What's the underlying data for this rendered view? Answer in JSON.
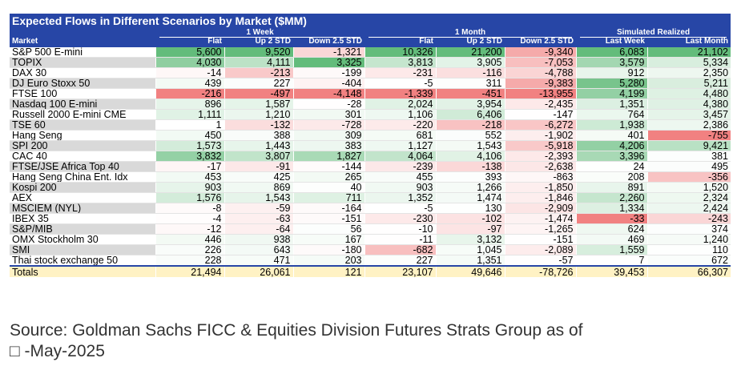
{
  "title": "Expected Flows in Different Scenarios by Market ($MM)",
  "groups": [
    "1 Week",
    "1 Month",
    "Simulated Realized"
  ],
  "market_label": "Market",
  "columns": [
    "Flat",
    "Up 2 STD",
    "Down 2.5 STD",
    "Flat",
    "Up 2 STD",
    "Down 2.5 STD",
    "Last Week",
    "Last Month"
  ],
  "rows": [
    {
      "market": "S&P 500 E-mini",
      "values": [
        "5,600",
        "9,520",
        "-1,321",
        "10,326",
        "21,200",
        "-9,340",
        "6,083",
        "21,102"
      ]
    },
    {
      "market": "TOPIX",
      "values": [
        "4,030",
        "4,111",
        "3,325",
        "3,813",
        "3,905",
        "-7,053",
        "3,579",
        "5,334"
      ]
    },
    {
      "market": "DAX 30",
      "values": [
        "-14",
        "-213",
        "-199",
        "-231",
        "-116",
        "-4,788",
        "912",
        "2,350"
      ]
    },
    {
      "market": "DJ Euro Stoxx 50",
      "values": [
        "439",
        "227",
        "-404",
        "-5",
        "311",
        "-9,383",
        "5,280",
        "5,211"
      ]
    },
    {
      "market": "FTSE 100",
      "values": [
        "-216",
        "-497",
        "-4,148",
        "-1,339",
        "-451",
        "-13,955",
        "4,199",
        "4,480"
      ]
    },
    {
      "market": "Nasdaq 100 E-mini",
      "values": [
        "896",
        "1,587",
        "-28",
        "2,024",
        "3,954",
        "-2,435",
        "1,351",
        "4,380"
      ]
    },
    {
      "market": "Russell 2000 E-mini CME",
      "values": [
        "1,111",
        "1,210",
        "301",
        "1,106",
        "6,406",
        "-147",
        "764",
        "3,457"
      ]
    },
    {
      "market": "TSE 60",
      "values": [
        "1",
        "-132",
        "-728",
        "-220",
        "-218",
        "-6,272",
        "1,938",
        "2,386"
      ]
    },
    {
      "market": "Hang Seng",
      "values": [
        "450",
        "388",
        "309",
        "681",
        "552",
        "-1,902",
        "401",
        "-755"
      ]
    },
    {
      "market": "SPI 200",
      "values": [
        "1,573",
        "1,443",
        "383",
        "1,127",
        "1,543",
        "-5,918",
        "4,206",
        "9,421"
      ]
    },
    {
      "market": "CAC 40",
      "values": [
        "3,832",
        "3,807",
        "1,827",
        "4,064",
        "4,106",
        "-2,393",
        "3,396",
        "381"
      ]
    },
    {
      "market": "FTSE/JSE Africa Top 40",
      "values": [
        "-17",
        "-91",
        "-144",
        "-239",
        "-138",
        "-2,638",
        "24",
        "495"
      ]
    },
    {
      "market": "Hang Seng China Ent. Idx",
      "values": [
        "453",
        "425",
        "265",
        "455",
        "393",
        "-863",
        "208",
        "-356"
      ]
    },
    {
      "market": "Kospi 200",
      "values": [
        "903",
        "869",
        "40",
        "903",
        "1,266",
        "-1,850",
        "891",
        "1,520"
      ]
    },
    {
      "market": "AEX",
      "values": [
        "1,576",
        "1,543",
        "711",
        "1,352",
        "1,474",
        "-1,846",
        "2,260",
        "2,324"
      ]
    },
    {
      "market": "MSCIEM (NYL)",
      "values": [
        "-8",
        "-59",
        "-164",
        "-5",
        "130",
        "-2,909",
        "1,334",
        "2,424"
      ]
    },
    {
      "market": "IBEX 35",
      "values": [
        "-4",
        "-63",
        "-151",
        "-230",
        "-102",
        "-1,474",
        "-33",
        "-243"
      ]
    },
    {
      "market": "S&P/MIB",
      "values": [
        "-12",
        "-64",
        "56",
        "-10",
        "-97",
        "-1,265",
        "624",
        "374"
      ]
    },
    {
      "market": "OMX Stockholm 30",
      "values": [
        "446",
        "938",
        "167",
        "-11",
        "3,132",
        "-151",
        "469",
        "1,240"
      ]
    },
    {
      "market": "SMI",
      "values": [
        "226",
        "643",
        "-180",
        "-682",
        "1,045",
        "-2,089",
        "1,559",
        "110"
      ]
    },
    {
      "market": "Thai stock exchange 50",
      "values": [
        "228",
        "471",
        "203",
        "227",
        "1,351",
        "-57",
        "7",
        "672"
      ]
    }
  ],
  "totals": {
    "label": "Totals",
    "values": [
      "21,494",
      "26,061",
      "121",
      "23,107",
      "49,646",
      "-78,726",
      "39,453",
      "66,307"
    ]
  },
  "source_line1": "Source: Goldman Sachs FICC & Equities Division Futures Strats Group as of",
  "source_line2": "□ -May-2025",
  "colors": {
    "header_bg": "#2746a6",
    "positive": "#5bb874",
    "negative": "#f07a7a",
    "totals_bg": "#fff2c4"
  }
}
